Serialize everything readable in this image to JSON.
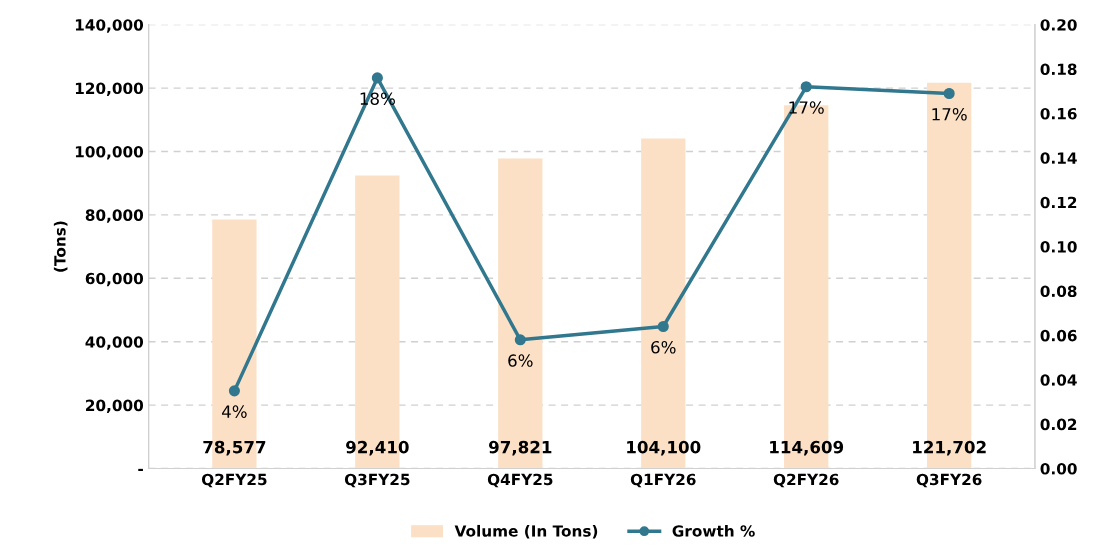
{
  "chart_data": {
    "type": "bar",
    "ylabel": "(Tons)",
    "categories": [
      "Q2FY25",
      "Q3FY25",
      "Q4FY25",
      "Q1FY26",
      "Q2FY26",
      "Q3FY26"
    ],
    "series": [
      {
        "name": "Volume (In Tons)",
        "color": "#fbe0c6",
        "values": [
          78577,
          92410,
          97821,
          104100,
          114609,
          121702
        ],
        "value_labels": [
          "78,577",
          "92,410",
          "97,821",
          "104,100",
          "114,609",
          "121,702"
        ]
      },
      {
        "name": "Growth %",
        "type": "line",
        "axis": "y2",
        "color": "#31788f",
        "values": [
          0.035,
          0.176,
          0.058,
          0.064,
          0.172,
          0.169
        ],
        "value_labels": [
          "4%",
          "18%",
          "6%",
          "6%",
          "17%",
          "17%"
        ]
      }
    ],
    "ylim": [
      0,
      140000
    ],
    "yticks": [
      {
        "value": 0,
        "label": "-"
      },
      {
        "value": 20000,
        "label": "20,000"
      },
      {
        "value": 40000,
        "label": "40,000"
      },
      {
        "value": 60000,
        "label": "60,000"
      },
      {
        "value": 80000,
        "label": "80,000"
      },
      {
        "value": 100000,
        "label": "100,000"
      },
      {
        "value": 120000,
        "label": "120,000"
      },
      {
        "value": 140000,
        "label": "140,000"
      }
    ],
    "y2lim": [
      0,
      0.2
    ],
    "y2ticks": [
      {
        "value": 0,
        "label": "0.00"
      },
      {
        "value": 0.02,
        "label": "0.02"
      },
      {
        "value": 0.04,
        "label": "0.04"
      },
      {
        "value": 0.06,
        "label": "0.06"
      },
      {
        "value": 0.08,
        "label": "0.08"
      },
      {
        "value": 0.1,
        "label": "0.10"
      },
      {
        "value": 0.12,
        "label": "0.12"
      },
      {
        "value": 0.14,
        "label": "0.14"
      },
      {
        "value": 0.16,
        "label": "0.16"
      },
      {
        "value": 0.18,
        "label": "0.18"
      },
      {
        "value": 0.2,
        "label": "0.20"
      }
    ],
    "grid": "y",
    "legend": "bottom",
    "marker": "circle",
    "line_style": "solid"
  }
}
